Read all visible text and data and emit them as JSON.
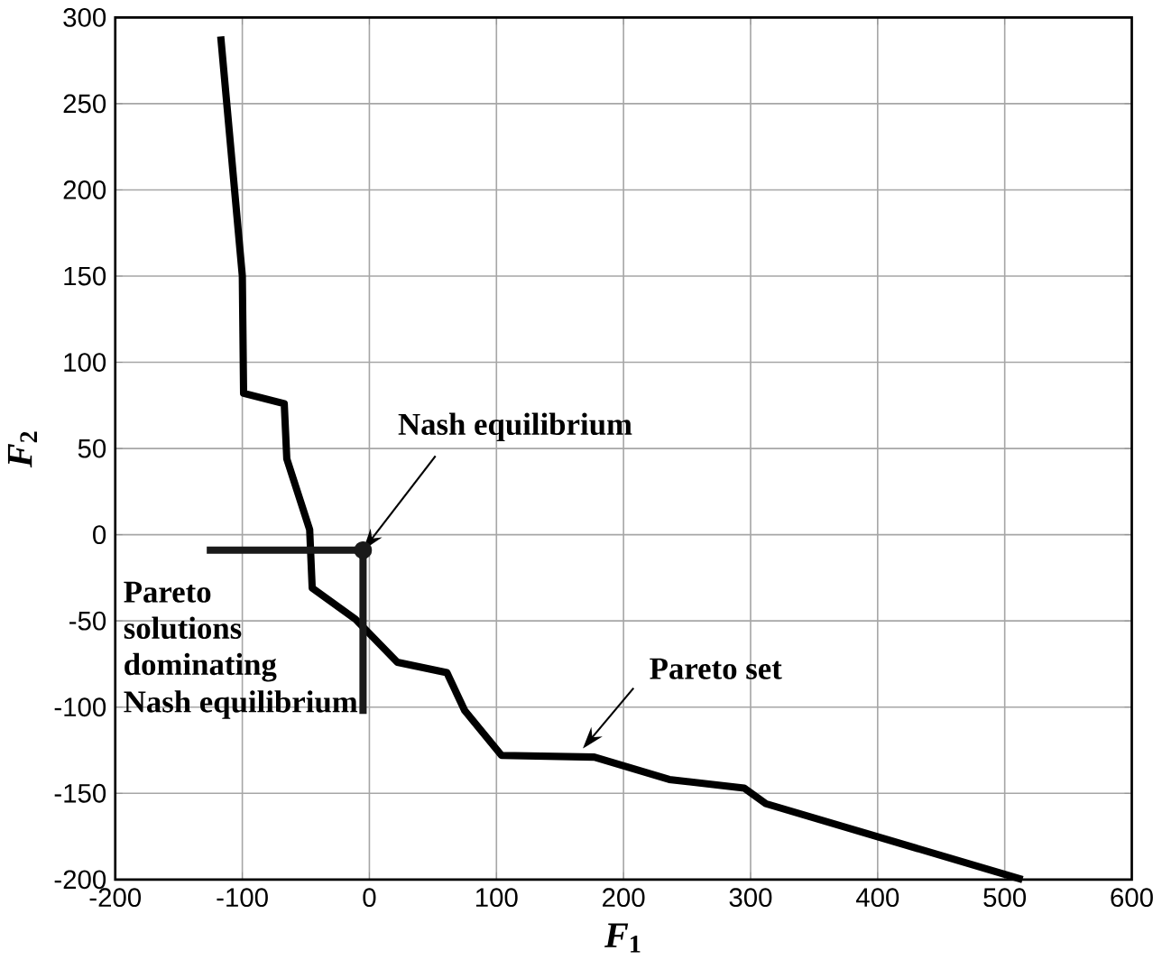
{
  "chart_data": {
    "type": "line",
    "xlabel": "*F*$_{1}$",
    "ylabel": "*F*$_{2}$",
    "xlim": [
      -200,
      600
    ],
    "ylim": [
      -200,
      300
    ],
    "xticks": [
      -200,
      -100,
      0,
      100,
      200,
      300,
      400,
      500,
      600
    ],
    "yticks": [
      -200,
      -150,
      -100,
      -50,
      0,
      50,
      100,
      150,
      200,
      250,
      300
    ],
    "grid": true,
    "series": [
      {
        "color": "#000000",
        "x": [
          -117,
          -100,
          -99,
          -67,
          -65,
          -47,
          -45,
          -11,
          22,
          61,
          75,
          104,
          177,
          236,
          295,
          312,
          514
        ],
        "values": [
          289,
          150,
          82,
          76,
          44,
          3,
          -31,
          -49,
          -74,
          -80,
          -102,
          -128,
          -129,
          -142,
          -147,
          -156,
          -200
        ]
      },
      {
        "color": "#1a1a1a",
        "x": [
          -128,
          -5
        ],
        "values": [
          -9,
          -9
        ]
      },
      {
        "color": "#1a1a1a",
        "x": [
          -5,
          -5
        ],
        "values": [
          -9,
          -104
        ]
      },
      {
        "type": "scatter",
        "marker": "circle",
        "color": "#1a1a1a",
        "x": [
          -5
        ],
        "values": [
          -9
        ]
      }
    ],
    "annotations": [
      {
        "text": "Nash equilibrium",
        "x": -5,
        "y": -9
      },
      {
        "text": "Pareto set",
        "x": 168,
        "y": -124
      },
      "Pareto solutions dominating",
      "Nash equilibrium"
    ]
  }
}
